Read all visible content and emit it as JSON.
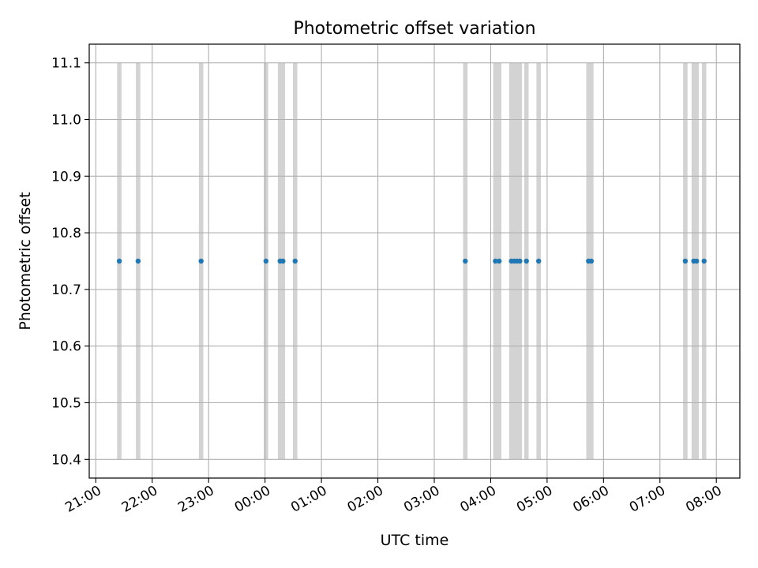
{
  "chart_data": {
    "type": "scatter",
    "title": "Photometric offset variation",
    "xlabel": "UTC time",
    "ylabel": "Photometric offset",
    "x_axis_type": "time",
    "xlim": [
      "2000-01-01 20:53",
      "2000-01-02 08:25"
    ],
    "ylim": [
      10.367,
      11.133
    ],
    "grid": true,
    "x_ticks": [
      {
        "t": "2000-01-01 21:00",
        "label": "21:00"
      },
      {
        "t": "2000-01-01 22:00",
        "label": "22:00"
      },
      {
        "t": "2000-01-01 23:00",
        "label": "23:00"
      },
      {
        "t": "2000-01-02 00:00",
        "label": "00:00"
      },
      {
        "t": "2000-01-02 01:00",
        "label": "01:00"
      },
      {
        "t": "2000-01-02 02:00",
        "label": "02:00"
      },
      {
        "t": "2000-01-02 03:00",
        "label": "03:00"
      },
      {
        "t": "2000-01-02 04:00",
        "label": "04:00"
      },
      {
        "t": "2000-01-02 05:00",
        "label": "05:00"
      },
      {
        "t": "2000-01-02 06:00",
        "label": "06:00"
      },
      {
        "t": "2000-01-02 07:00",
        "label": "07:00"
      },
      {
        "t": "2000-01-02 08:00",
        "label": "08:00"
      }
    ],
    "y_ticks": [
      {
        "v": 10.4,
        "label": "10.4"
      },
      {
        "v": 10.5,
        "label": "10.5"
      },
      {
        "v": 10.6,
        "label": "10.6"
      },
      {
        "v": 10.7,
        "label": "10.7"
      },
      {
        "v": 10.8,
        "label": "10.8"
      },
      {
        "v": 10.9,
        "label": "10.9"
      },
      {
        "v": 11.0,
        "label": "11.0"
      },
      {
        "v": 11.1,
        "label": "11.1"
      }
    ],
    "band_ylim": [
      10.4,
      11.1
    ],
    "bands": [
      "2000-01-01 21:25",
      "2000-01-01 21:45",
      "2000-01-01 22:52",
      "2000-01-02 00:01",
      "2000-01-02 00:16",
      "2000-01-02 00:19",
      "2000-01-02 00:32",
      "2000-01-02 03:33",
      "2000-01-02 04:05",
      "2000-01-02 04:09",
      "2000-01-02 04:22",
      "2000-01-02 04:25",
      "2000-01-02 04:28",
      "2000-01-02 04:31",
      "2000-01-02 04:38",
      "2000-01-02 04:51",
      "2000-01-02 05:44",
      "2000-01-02 05:47",
      "2000-01-02 07:27",
      "2000-01-02 07:36",
      "2000-01-02 07:39",
      "2000-01-02 07:47"
    ],
    "series": [
      {
        "color": "#1f77b4",
        "points": [
          {
            "t": "2000-01-01 21:25",
            "y": 10.75
          },
          {
            "t": "2000-01-01 21:45",
            "y": 10.75
          },
          {
            "t": "2000-01-01 22:52",
            "y": 10.75
          },
          {
            "t": "2000-01-02 00:01",
            "y": 10.75
          },
          {
            "t": "2000-01-02 00:16",
            "y": 10.75
          },
          {
            "t": "2000-01-02 00:19",
            "y": 10.75
          },
          {
            "t": "2000-01-02 00:32",
            "y": 10.75
          },
          {
            "t": "2000-01-02 03:33",
            "y": 10.75
          },
          {
            "t": "2000-01-02 04:05",
            "y": 10.75
          },
          {
            "t": "2000-01-02 04:09",
            "y": 10.75
          },
          {
            "t": "2000-01-02 04:22",
            "y": 10.75
          },
          {
            "t": "2000-01-02 04:25",
            "y": 10.75
          },
          {
            "t": "2000-01-02 04:28",
            "y": 10.75
          },
          {
            "t": "2000-01-02 04:31",
            "y": 10.75
          },
          {
            "t": "2000-01-02 04:38",
            "y": 10.75
          },
          {
            "t": "2000-01-02 04:51",
            "y": 10.75
          },
          {
            "t": "2000-01-02 05:44",
            "y": 10.75
          },
          {
            "t": "2000-01-02 05:47",
            "y": 10.75
          },
          {
            "t": "2000-01-02 07:27",
            "y": 10.75
          },
          {
            "t": "2000-01-02 07:36",
            "y": 10.75
          },
          {
            "t": "2000-01-02 07:39",
            "y": 10.75
          },
          {
            "t": "2000-01-02 07:47",
            "y": 10.75
          }
        ]
      }
    ],
    "colors": {
      "bands": "#d3d3d3",
      "grid": "#b0b0b0",
      "axes": "#000000"
    }
  }
}
